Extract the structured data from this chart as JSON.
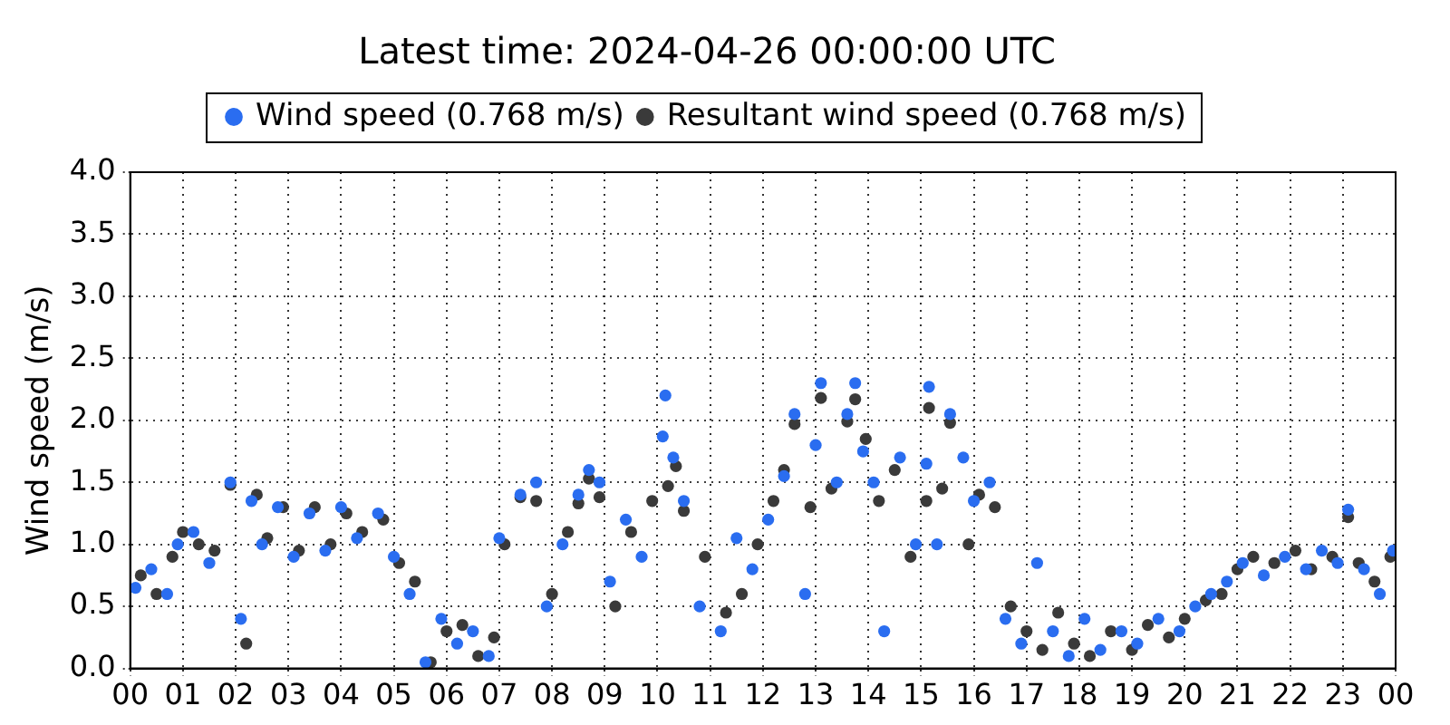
{
  "chart_data": {
    "type": "scatter",
    "title": "Latest time: 2024-04-26 00:00:00 UTC",
    "ylabel": "Wind speed (m/s)",
    "legend": "top",
    "grid": true,
    "marker": "circle",
    "xlim": [
      0,
      24
    ],
    "xticks": [
      {
        "value": 0,
        "label": "00"
      },
      {
        "value": 1,
        "label": "01"
      },
      {
        "value": 2,
        "label": "02"
      },
      {
        "value": 3,
        "label": "03"
      },
      {
        "value": 4,
        "label": "04"
      },
      {
        "value": 5,
        "label": "05"
      },
      {
        "value": 6,
        "label": "06"
      },
      {
        "value": 7,
        "label": "07"
      },
      {
        "value": 8,
        "label": "08"
      },
      {
        "value": 9,
        "label": "09"
      },
      10,
      11,
      12,
      13,
      14,
      15,
      16,
      17,
      18,
      19,
      20,
      21,
      22,
      23,
      {
        "value": 24,
        "label": "00"
      }
    ],
    "ylim": [
      0,
      4
    ],
    "yticks": [
      {
        "value": 0,
        "label": "0.0"
      },
      {
        "value": 0.5,
        "label": "0.5"
      },
      {
        "value": 1,
        "label": "1.0"
      },
      {
        "value": 1.5,
        "label": "1.5"
      },
      {
        "value": 2,
        "label": "2.0"
      },
      {
        "value": 2.5,
        "label": "2.5"
      },
      {
        "value": 3,
        "label": "3.0"
      },
      {
        "value": 3.5,
        "label": "3.5"
      },
      {
        "value": 4,
        "label": "4.0"
      }
    ],
    "series": [
      {
        "name": "Wind speed (0.768 m/s)",
        "color": "#2a6df0",
        "x": [
          0.1,
          0.4,
          0.7,
          0.9,
          1.2,
          1.5,
          1.9,
          2.1,
          2.3,
          2.5,
          2.8,
          3.1,
          3.4,
          3.7,
          4.0,
          4.3,
          4.7,
          5.0,
          5.3,
          5.6,
          5.9,
          6.2,
          6.5,
          6.8,
          7.0,
          7.4,
          7.7,
          7.9,
          8.2,
          8.5,
          8.7,
          8.9,
          9.1,
          9.4,
          9.7,
          10.1,
          10.15,
          10.3,
          10.5,
          10.8,
          11.2,
          11.5,
          11.8,
          12.1,
          12.4,
          12.6,
          12.8,
          13.0,
          13.1,
          13.4,
          13.6,
          13.75,
          13.9,
          14.1,
          14.3,
          14.6,
          14.9,
          15.1,
          15.15,
          15.3,
          15.55,
          15.8,
          16.0,
          16.3,
          16.6,
          16.9,
          17.2,
          17.5,
          17.8,
          18.1,
          18.4,
          18.8,
          19.1,
          19.5,
          19.9,
          20.2,
          20.5,
          20.8,
          21.1,
          21.5,
          21.9,
          22.3,
          22.6,
          22.9,
          23.1,
          23.4,
          23.7,
          23.95
        ],
        "values": [
          0.65,
          0.8,
          0.6,
          1.0,
          1.1,
          0.85,
          1.5,
          0.4,
          1.35,
          1.0,
          1.3,
          0.9,
          1.25,
          0.95,
          1.3,
          1.05,
          1.25,
          0.9,
          0.6,
          0.05,
          0.4,
          0.2,
          0.3,
          0.1,
          1.05,
          1.4,
          1.5,
          0.5,
          1.0,
          1.4,
          1.6,
          1.5,
          0.7,
          1.2,
          0.9,
          1.87,
          2.2,
          1.7,
          1.35,
          0.5,
          0.3,
          1.05,
          0.8,
          1.2,
          1.55,
          2.05,
          0.6,
          1.8,
          2.3,
          1.5,
          2.05,
          2.3,
          1.75,
          1.5,
          0.3,
          1.7,
          1.0,
          1.65,
          2.27,
          1.0,
          2.05,
          1.7,
          1.35,
          1.5,
          0.4,
          0.2,
          0.85,
          0.3,
          0.1,
          0.4,
          0.15,
          0.3,
          0.2,
          0.4,
          0.3,
          0.5,
          0.6,
          0.7,
          0.85,
          0.75,
          0.9,
          0.8,
          0.95,
          0.85,
          1.28,
          0.8,
          0.6,
          0.95
        ]
      },
      {
        "name": "Resultant wind speed (0.768 m/s)",
        "color": "#3a3a3a",
        "x": [
          0.2,
          0.5,
          0.8,
          1.0,
          1.3,
          1.6,
          1.9,
          2.2,
          2.4,
          2.6,
          2.9,
          3.2,
          3.5,
          3.8,
          4.1,
          4.4,
          4.8,
          5.1,
          5.4,
          5.7,
          6.0,
          6.3,
          6.6,
          6.9,
          7.1,
          7.4,
          7.7,
          8.0,
          8.3,
          8.5,
          8.7,
          8.9,
          9.2,
          9.5,
          9.9,
          10.2,
          10.35,
          10.5,
          10.9,
          11.3,
          11.6,
          11.9,
          12.2,
          12.4,
          12.6,
          12.9,
          13.1,
          13.3,
          13.6,
          13.75,
          13.95,
          14.2,
          14.5,
          14.8,
          15.1,
          15.15,
          15.4,
          15.55,
          15.9,
          16.1,
          16.4,
          16.7,
          17.0,
          17.3,
          17.6,
          17.9,
          18.2,
          18.6,
          19.0,
          19.3,
          19.7,
          20.0,
          20.4,
          20.7,
          21.0,
          21.3,
          21.7,
          22.1,
          22.4,
          22.8,
          23.1,
          23.3,
          23.6,
          23.9
        ],
        "values": [
          0.75,
          0.6,
          0.9,
          1.1,
          1.0,
          0.95,
          1.48,
          0.2,
          1.4,
          1.05,
          1.3,
          0.95,
          1.3,
          1.0,
          1.25,
          1.1,
          1.2,
          0.85,
          0.7,
          0.05,
          0.3,
          0.35,
          0.1,
          0.25,
          1.0,
          1.38,
          1.35,
          0.6,
          1.1,
          1.33,
          1.53,
          1.38,
          0.5,
          1.1,
          1.35,
          1.47,
          1.63,
          1.27,
          0.9,
          0.45,
          0.6,
          1.0,
          1.35,
          1.6,
          1.97,
          1.3,
          2.18,
          1.45,
          1.99,
          2.17,
          1.85,
          1.35,
          1.6,
          0.9,
          1.35,
          2.1,
          1.45,
          1.98,
          1.0,
          1.4,
          1.3,
          0.5,
          0.3,
          0.15,
          0.45,
          0.2,
          0.1,
          0.3,
          0.15,
          0.35,
          0.25,
          0.4,
          0.55,
          0.6,
          0.8,
          0.9,
          0.85,
          0.95,
          0.8,
          0.9,
          1.22,
          0.85,
          0.7,
          0.9
        ]
      }
    ]
  }
}
